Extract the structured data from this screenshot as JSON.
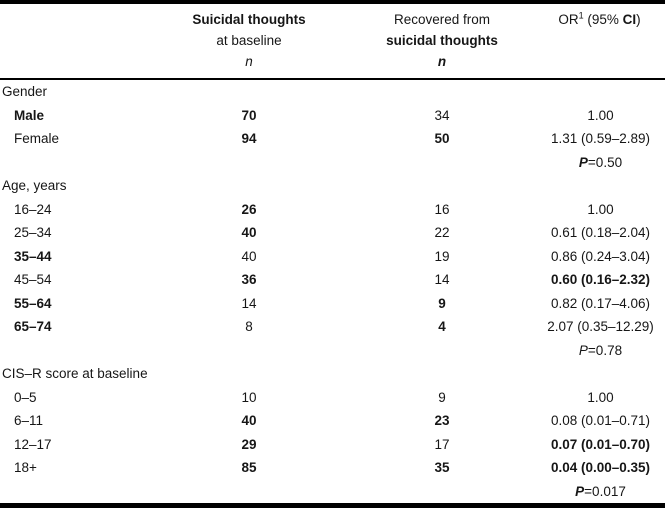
{
  "table": {
    "header": {
      "col_baseline": {
        "line1": "Suicidal thoughts",
        "line2": "at baseline",
        "line3": "n"
      },
      "col_recovered": {
        "line1": "Recovered from",
        "line2": "suicidal thoughts",
        "line3": "n"
      },
      "col_or": {
        "pre": "OR",
        "sup": "1",
        "mid": " (95% ",
        "ci": "CI",
        "post": ")"
      }
    },
    "rows": [
      {
        "type": "section",
        "label": "Gender"
      },
      {
        "type": "data",
        "label": "Male",
        "label_bold": true,
        "n1": "70",
        "n1_bold": true,
        "n2": "34",
        "or": "1.00"
      },
      {
        "type": "data",
        "label": "Female",
        "n1": "94",
        "n1_bold": true,
        "n2": "50",
        "n2_bold": true,
        "or": "1.31 (0.59–2.89)"
      },
      {
        "type": "pvalue",
        "p": "P",
        "value": "=0.50",
        "p_bold": true
      },
      {
        "type": "section",
        "label": "Age, years"
      },
      {
        "type": "data",
        "label": "16–24",
        "n1": "26",
        "n1_bold": true,
        "n2": "16",
        "or": "1.00"
      },
      {
        "type": "data",
        "label": "25–34",
        "n1": "40",
        "n1_bold": true,
        "n2": "22",
        "or": "0.61 (0.18–2.04)"
      },
      {
        "type": "data",
        "label": "35–44",
        "label_bold": true,
        "n1": "40",
        "n2": "19",
        "or": "0.86 (0.24–3.04)"
      },
      {
        "type": "data",
        "label": "45–54",
        "n1": "36",
        "n1_bold": true,
        "n2": "14",
        "or": "0.60 (0.16–2.32)",
        "or_bold": true
      },
      {
        "type": "data",
        "label": "55–64",
        "label_bold": true,
        "n1": "14",
        "n2": "9",
        "n2_bold": true,
        "or": "0.82 (0.17–4.06)"
      },
      {
        "type": "data",
        "label": "65–74",
        "label_bold": true,
        "n1": "8",
        "n2": "4",
        "n2_bold": true,
        "or": "2.07 (0.35–12.29)"
      },
      {
        "type": "pvalue",
        "p": "P",
        "value": "=0.78"
      },
      {
        "type": "section",
        "label": "CIS–R score at baseline"
      },
      {
        "type": "data",
        "label": "0–5",
        "n1": "10",
        "n2": "9",
        "or": "1.00"
      },
      {
        "type": "data",
        "label": "6–11",
        "n1": "40",
        "n1_bold": true,
        "n2": "23",
        "n2_bold": true,
        "or": "0.08 (0.01–0.71)"
      },
      {
        "type": "data",
        "label": "12–17",
        "n1": "29",
        "n1_bold": true,
        "n2": "17",
        "or": "0.07 (0.01–0.70)",
        "or_bold": true
      },
      {
        "type": "data",
        "label": "18+",
        "n1": "85",
        "n1_bold": true,
        "n2": "35",
        "n2_bold": true,
        "or": "0.04 (0.00–0.35)",
        "or_bold": true
      },
      {
        "type": "pvalue",
        "p": "P",
        "value": "=0.017",
        "p_bold": true
      }
    ]
  }
}
